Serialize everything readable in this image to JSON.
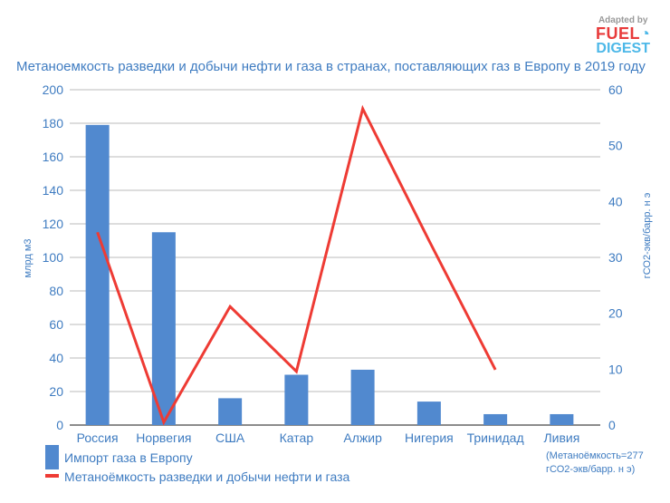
{
  "logo": {
    "adapted": "Adapted by",
    "brand1": "FUEL",
    "brand2": "DIGEST"
  },
  "chart_data": {
    "type": "bar+line",
    "title": "Метаноемкость разведки и добычи нефти и газа в странах, поставляющих газ в Европу в 2019 году",
    "categories": [
      "Россия",
      "Норвегия",
      "США",
      "Катар",
      "Алжир",
      "Нигерия",
      "Тринидад",
      "Ливия"
    ],
    "series": [
      {
        "name": "Импорт газа в Европу",
        "type": "bar",
        "axis": "left",
        "color": "#5189cf",
        "values": [
          179,
          115,
          16,
          30,
          33,
          14,
          6.5,
          6.5
        ]
      },
      {
        "name": "Метаноёмкость разведки и добычи нефти и газа",
        "type": "line",
        "axis": "right",
        "color": "#ee3b34",
        "values": [
          34.5,
          0.5,
          21.2,
          9.6,
          56.6,
          33,
          9.9,
          null
        ]
      }
    ],
    "ylabel": "млрд м3",
    "y2label": "гСО2-экв/барр. н э",
    "ylim": [
      0,
      200
    ],
    "y2lim": [
      0,
      60
    ],
    "yticks": [
      0,
      20,
      40,
      60,
      80,
      100,
      120,
      140,
      160,
      180,
      200
    ],
    "y2ticks": [
      0,
      10,
      20,
      30,
      40,
      50,
      60
    ],
    "grid": true,
    "legend_placement": "bottom-left",
    "annotation": [
      "(Метаноёмкость=277",
      "гСО2-экв/барр. н э)"
    ]
  }
}
